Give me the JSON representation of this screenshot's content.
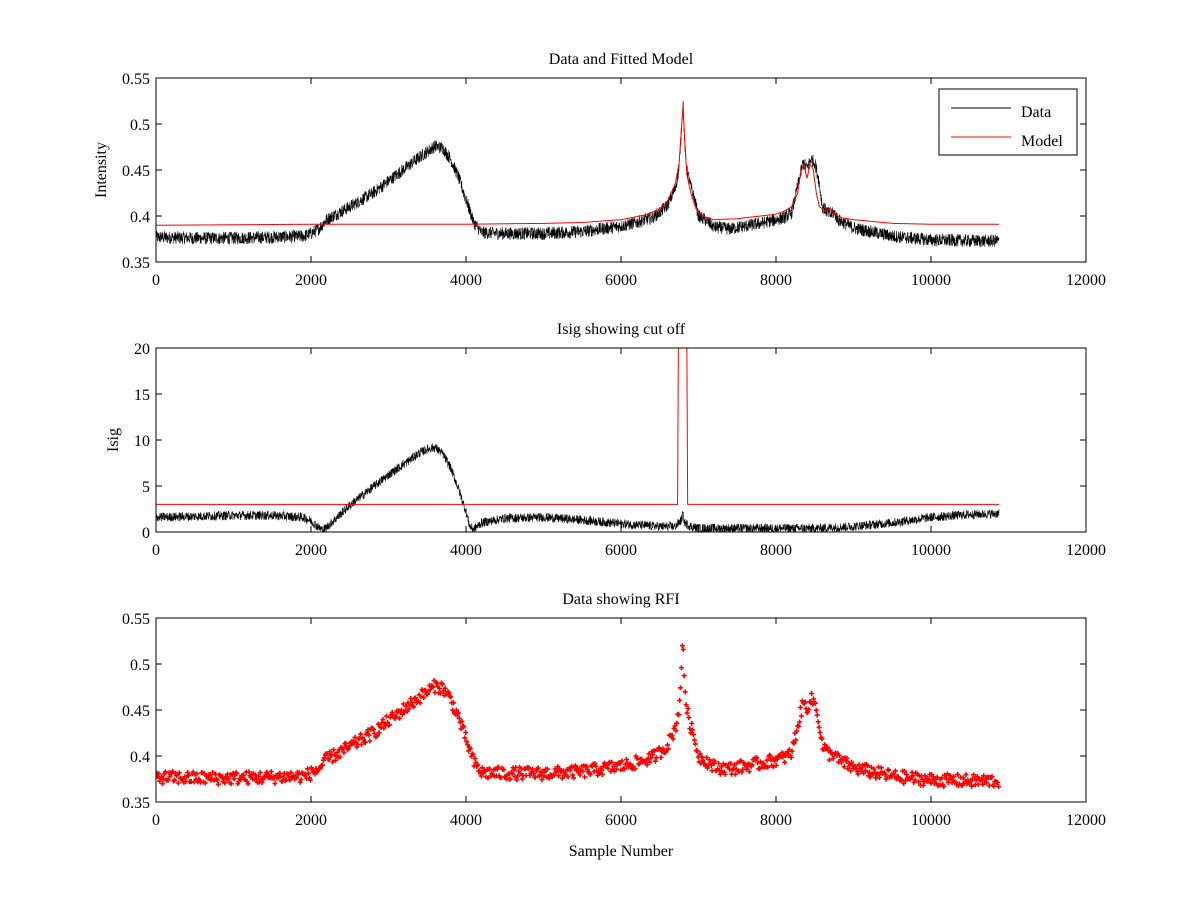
{
  "chart_data": [
    {
      "type": "line",
      "title": "Data and Fitted Model",
      "xlabel": "",
      "ylabel": "Intensity",
      "xlim": [
        0,
        12000
      ],
      "ylim": [
        0.35,
        0.55
      ],
      "xticks": [
        0,
        2000,
        4000,
        6000,
        8000,
        10000,
        12000
      ],
      "yticks": [
        0.35,
        0.4,
        0.45,
        0.5,
        0.55
      ],
      "xtick_labels": [
        "0",
        "2000",
        "4000",
        "6000",
        "8000",
        "10000",
        "12000"
      ],
      "ytick_labels": [
        "0.35",
        "0.4",
        "0.45",
        "0.5",
        "0.55"
      ],
      "grid": false,
      "legend": {
        "placement": "top-right",
        "entries": [
          "Data",
          "Model"
        ]
      },
      "series": [
        {
          "name": "Data",
          "color": "#000000",
          "style": "noisy-line",
          "noise": 0.007,
          "x": [
            0,
            500,
            1000,
            1500,
            1900,
            2000,
            2100,
            2200,
            2500,
            2800,
            3000,
            3200,
            3400,
            3500,
            3600,
            3700,
            3800,
            3900,
            4000,
            4100,
            4200,
            4500,
            5000,
            5500,
            6000,
            6200,
            6400,
            6500,
            6600,
            6700,
            6750,
            6800,
            6820,
            6850,
            6900,
            6950,
            7000,
            7100,
            7200,
            7400,
            7600,
            7800,
            8000,
            8100,
            8200,
            8300,
            8350,
            8400,
            8450,
            8500,
            8550,
            8600,
            8700,
            8750,
            8800,
            9000,
            9500,
            10000,
            10500,
            10880
          ],
          "y": [
            0.377,
            0.376,
            0.376,
            0.377,
            0.378,
            0.381,
            0.386,
            0.396,
            0.41,
            0.425,
            0.438,
            0.451,
            0.464,
            0.47,
            0.476,
            0.474,
            0.462,
            0.443,
            0.418,
            0.393,
            0.382,
            0.381,
            0.381,
            0.383,
            0.389,
            0.393,
            0.398,
            0.404,
            0.412,
            0.43,
            0.452,
            0.525,
            0.48,
            0.45,
            0.432,
            0.418,
            0.4,
            0.395,
            0.388,
            0.386,
            0.389,
            0.392,
            0.396,
            0.398,
            0.403,
            0.44,
            0.458,
            0.452,
            0.462,
            0.458,
            0.44,
            0.41,
            0.401,
            0.404,
            0.396,
            0.387,
            0.378,
            0.374,
            0.373,
            0.373
          ]
        },
        {
          "name": "Model",
          "color": "#ff0000",
          "style": "line",
          "x": [
            0,
            2000,
            4000,
            5000,
            5500,
            6000,
            6300,
            6500,
            6600,
            6700,
            6750,
            6800,
            6830,
            6850,
            6900,
            6950,
            7000,
            7100,
            7200,
            7500,
            7800,
            8000,
            8100,
            8200,
            8280,
            8320,
            8360,
            8400,
            8440,
            8480,
            8520,
            8560,
            8650,
            8700,
            8750,
            8850,
            9000,
            9500,
            10000,
            10880
          ],
          "y": [
            0.39,
            0.391,
            0.391,
            0.392,
            0.393,
            0.396,
            0.401,
            0.407,
            0.416,
            0.435,
            0.458,
            0.52,
            0.47,
            0.445,
            0.425,
            0.412,
            0.403,
            0.398,
            0.396,
            0.397,
            0.4,
            0.402,
            0.405,
            0.41,
            0.425,
            0.448,
            0.455,
            0.441,
            0.456,
            0.451,
            0.425,
            0.41,
            0.405,
            0.409,
            0.402,
            0.398,
            0.396,
            0.392,
            0.391,
            0.391
          ]
        }
      ]
    },
    {
      "type": "line",
      "title": "Isig showing cut off",
      "xlabel": "",
      "ylabel": "Isig",
      "xlim": [
        0,
        12000
      ],
      "ylim": [
        0,
        20
      ],
      "xticks": [
        0,
        2000,
        4000,
        6000,
        8000,
        10000,
        12000
      ],
      "yticks": [
        0,
        5,
        10,
        15,
        20
      ],
      "xtick_labels": [
        "0",
        "2000",
        "4000",
        "6000",
        "8000",
        "10000",
        "12000"
      ],
      "ytick_labels": [
        "0",
        "5",
        "10",
        "15",
        "20"
      ],
      "grid": false,
      "series": [
        {
          "color": "#000000",
          "style": "noisy-line",
          "noise": 0.5,
          "x": [
            0,
            500,
            1000,
            1500,
            1900,
            2000,
            2100,
            2150,
            2200,
            2300,
            2500,
            2800,
            3000,
            3200,
            3400,
            3500,
            3600,
            3700,
            3800,
            3900,
            4000,
            4050,
            4100,
            4200,
            4500,
            5000,
            5500,
            6000,
            6500,
            6700,
            6780,
            6800,
            6820,
            6900,
            7000,
            7500,
            8000,
            8500,
            9000,
            9500,
            10000,
            10500,
            10880
          ],
          "y": [
            1.6,
            1.7,
            1.8,
            1.8,
            1.6,
            1.2,
            0.5,
            0.2,
            0.5,
            1.3,
            2.9,
            4.9,
            6.2,
            7.4,
            8.6,
            9.0,
            9.2,
            8.5,
            7.0,
            4.8,
            2.2,
            0.6,
            0.3,
            1.0,
            1.5,
            1.6,
            1.3,
            0.9,
            0.6,
            0.6,
            1.3,
            2.0,
            1.0,
            0.6,
            0.4,
            0.4,
            0.4,
            0.4,
            0.6,
            1.0,
            1.6,
            1.9,
            2.0
          ]
        },
        {
          "color": "#ff0000",
          "style": "line",
          "x": [
            0,
            6730,
            6740,
            6800,
            6850,
            6860,
            10880
          ],
          "y": [
            3,
            3,
            20,
            20,
            20,
            3,
            3
          ]
        }
      ]
    },
    {
      "type": "scatter",
      "title": "Data showing RFI",
      "xlabel": "Sample Number",
      "ylabel": "",
      "xlim": [
        0,
        12000
      ],
      "ylim": [
        0.35,
        0.55
      ],
      "xticks": [
        0,
        2000,
        4000,
        6000,
        8000,
        10000,
        12000
      ],
      "yticks": [
        0.35,
        0.4,
        0.45,
        0.5,
        0.55
      ],
      "xtick_labels": [
        "0",
        "2000",
        "4000",
        "6000",
        "8000",
        "10000",
        "12000"
      ],
      "ytick_labels": [
        "0.35",
        "0.4",
        "0.45",
        "0.5",
        "0.55"
      ],
      "grid": false,
      "series": [
        {
          "color": "#ff0000",
          "style": "dense-markers",
          "noise": 0.007,
          "x": [
            0,
            500,
            1000,
            1500,
            1900,
            2000,
            2100,
            2200,
            2500,
            2800,
            3000,
            3200,
            3400,
            3500,
            3600,
            3700,
            3800,
            3900,
            4000,
            4100,
            4200,
            4500,
            5000,
            5500,
            6000,
            6200,
            6400,
            6500,
            6600,
            6700,
            6750,
            6800,
            6820,
            6850,
            6900,
            6950,
            7000,
            7100,
            7200,
            7400,
            7600,
            7800,
            8000,
            8100,
            8200,
            8300,
            8350,
            8400,
            8450,
            8500,
            8550,
            8600,
            8700,
            8750,
            8800,
            9000,
            9500,
            10000,
            10500,
            10880
          ],
          "y": [
            0.377,
            0.376,
            0.376,
            0.377,
            0.378,
            0.381,
            0.386,
            0.396,
            0.41,
            0.425,
            0.438,
            0.451,
            0.464,
            0.47,
            0.476,
            0.474,
            0.462,
            0.443,
            0.418,
            0.393,
            0.382,
            0.381,
            0.381,
            0.383,
            0.389,
            0.393,
            0.398,
            0.404,
            0.412,
            0.43,
            0.452,
            0.525,
            0.48,
            0.45,
            0.432,
            0.418,
            0.4,
            0.395,
            0.388,
            0.386,
            0.389,
            0.392,
            0.396,
            0.398,
            0.403,
            0.44,
            0.458,
            0.452,
            0.462,
            0.458,
            0.44,
            0.41,
            0.401,
            0.404,
            0.396,
            0.387,
            0.378,
            0.374,
            0.373,
            0.373
          ]
        }
      ]
    }
  ]
}
